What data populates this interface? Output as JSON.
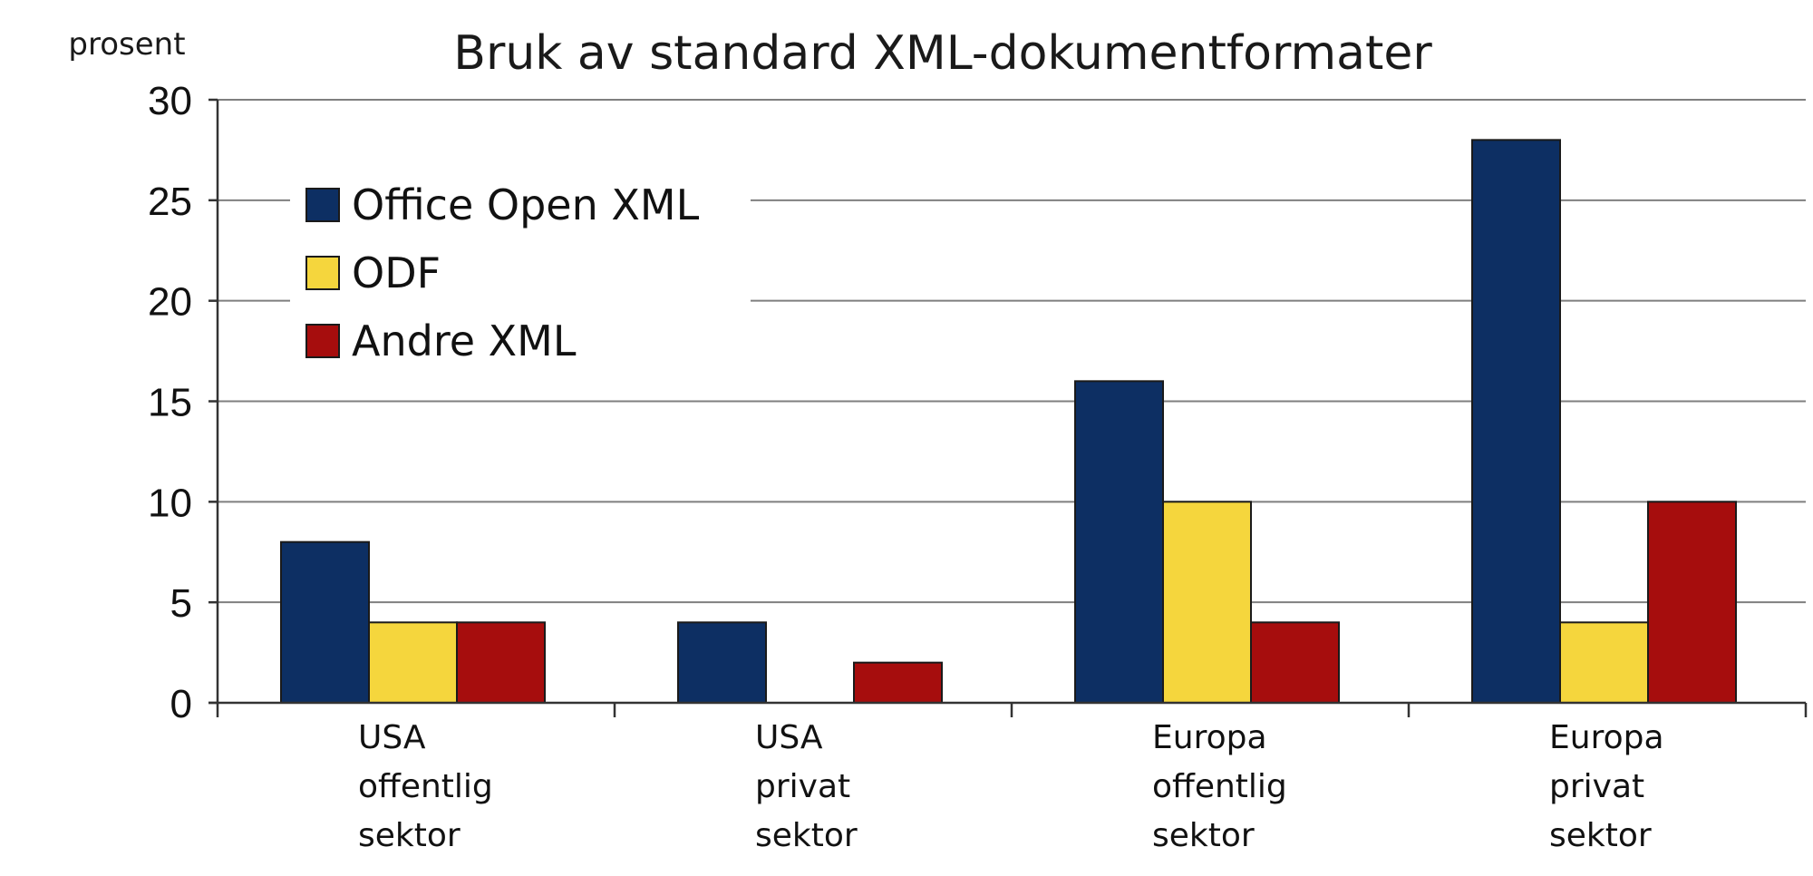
{
  "chart_data": {
    "type": "bar",
    "title": "Bruk av standard XML-dokumentformater",
    "ylabel": "prosent",
    "xlabel": "",
    "ylim": [
      0,
      30
    ],
    "yticks": [
      0,
      5,
      10,
      15,
      20,
      25,
      30
    ],
    "grid": true,
    "legend_position": "top-left",
    "categories": [
      [
        "USA",
        "offentlig",
        "sektor"
      ],
      [
        "USA",
        "privat",
        "sektor"
      ],
      [
        "Europa",
        "offentlig",
        "sektor"
      ],
      [
        "Europa",
        "privat",
        "sektor"
      ]
    ],
    "series": [
      {
        "name": "Office Open XML",
        "color": "#0d2f63",
        "values": [
          8,
          4,
          16,
          28
        ]
      },
      {
        "name": "ODF",
        "color": "#f5d63d",
        "values": [
          4,
          0,
          10,
          4
        ]
      },
      {
        "name": "Andre XML",
        "color": "#a60d0d",
        "values": [
          4,
          2,
          4,
          10
        ]
      }
    ]
  }
}
